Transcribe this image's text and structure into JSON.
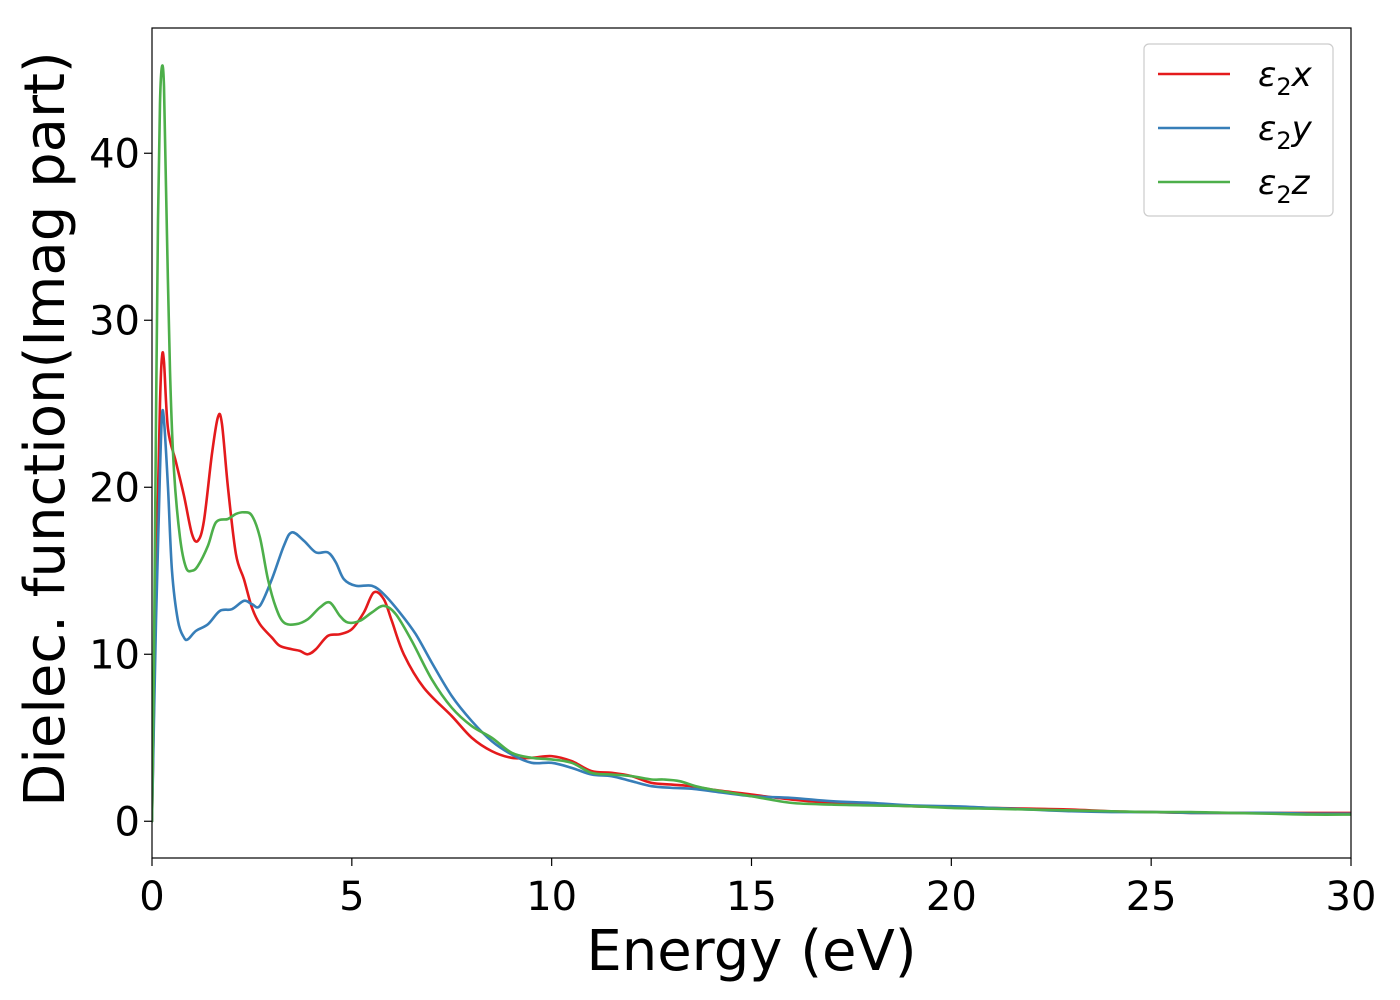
{
  "chart_data": {
    "type": "line",
    "title": "",
    "xlabel": "Energy (eV)",
    "ylabel": "Dielec. function(Imag part)",
    "xlim": [
      0,
      30
    ],
    "ylim": [
      -2.2,
      47.5
    ],
    "xticks": [
      0,
      5,
      10,
      15,
      20,
      25,
      30
    ],
    "yticks": [
      0,
      10,
      20,
      30,
      40
    ],
    "grid": false,
    "legend_position": "top-right",
    "series": [
      {
        "name": "ε2x",
        "color": "#e41a1c",
        "points": [
          [
            0,
            0
          ],
          [
            0.1,
            14
          ],
          [
            0.2,
            25
          ],
          [
            0.25,
            27.8
          ],
          [
            0.3,
            27.5
          ],
          [
            0.4,
            23.5
          ],
          [
            0.6,
            21.5
          ],
          [
            0.8,
            19.5
          ],
          [
            1.0,
            17.2
          ],
          [
            1.15,
            16.8
          ],
          [
            1.3,
            18
          ],
          [
            1.5,
            22
          ],
          [
            1.65,
            24.2
          ],
          [
            1.75,
            23.8
          ],
          [
            1.9,
            20
          ],
          [
            2.1,
            16
          ],
          [
            2.3,
            14.5
          ],
          [
            2.5,
            12.8
          ],
          [
            2.7,
            11.8
          ],
          [
            3.0,
            11
          ],
          [
            3.2,
            10.5
          ],
          [
            3.5,
            10.3
          ],
          [
            3.7,
            10.2
          ],
          [
            3.9,
            10
          ],
          [
            4.1,
            10.3
          ],
          [
            4.4,
            11.1
          ],
          [
            4.7,
            11.2
          ],
          [
            5.0,
            11.5
          ],
          [
            5.3,
            12.5
          ],
          [
            5.55,
            13.7
          ],
          [
            5.8,
            13.3
          ],
          [
            6.0,
            12
          ],
          [
            6.3,
            10
          ],
          [
            6.8,
            8
          ],
          [
            7.5,
            6.3
          ],
          [
            8.0,
            5
          ],
          [
            8.5,
            4.2
          ],
          [
            9.0,
            3.8
          ],
          [
            9.5,
            3.8
          ],
          [
            10.0,
            3.9
          ],
          [
            10.5,
            3.6
          ],
          [
            11.0,
            3.0
          ],
          [
            11.5,
            2.9
          ],
          [
            12.0,
            2.7
          ],
          [
            12.5,
            2.3
          ],
          [
            13.0,
            2.2
          ],
          [
            13.5,
            2.1
          ],
          [
            14.0,
            1.9
          ],
          [
            15.0,
            1.6
          ],
          [
            16.0,
            1.3
          ],
          [
            17.0,
            1.1
          ],
          [
            18.0,
            1.0
          ],
          [
            19.0,
            0.9
          ],
          [
            20.0,
            0.85
          ],
          [
            21.0,
            0.8
          ],
          [
            22.0,
            0.75
          ],
          [
            23.0,
            0.7
          ],
          [
            24.0,
            0.6
          ],
          [
            25.0,
            0.55
          ],
          [
            26.0,
            0.5
          ],
          [
            27.0,
            0.5
          ],
          [
            28.0,
            0.5
          ],
          [
            29.0,
            0.5
          ],
          [
            30.0,
            0.5
          ]
        ]
      },
      {
        "name": "ε2y",
        "color": "#377eb8",
        "points": [
          [
            0,
            0
          ],
          [
            0.1,
            12
          ],
          [
            0.2,
            21
          ],
          [
            0.25,
            24.3
          ],
          [
            0.3,
            24
          ],
          [
            0.4,
            20
          ],
          [
            0.5,
            15
          ],
          [
            0.65,
            12
          ],
          [
            0.8,
            11
          ],
          [
            0.9,
            10.9
          ],
          [
            1.1,
            11.4
          ],
          [
            1.4,
            11.8
          ],
          [
            1.7,
            12.6
          ],
          [
            2.0,
            12.7
          ],
          [
            2.3,
            13.2
          ],
          [
            2.5,
            13
          ],
          [
            2.7,
            12.9
          ],
          [
            3.0,
            14.5
          ],
          [
            3.3,
            16.5
          ],
          [
            3.5,
            17.3
          ],
          [
            3.8,
            16.8
          ],
          [
            4.1,
            16.1
          ],
          [
            4.4,
            16.1
          ],
          [
            4.6,
            15.5
          ],
          [
            4.8,
            14.5
          ],
          [
            5.1,
            14.1
          ],
          [
            5.5,
            14.1
          ],
          [
            5.8,
            13.6
          ],
          [
            6.2,
            12.5
          ],
          [
            6.6,
            11.2
          ],
          [
            7.0,
            9.5
          ],
          [
            7.5,
            7.5
          ],
          [
            8.0,
            6
          ],
          [
            8.5,
            4.8
          ],
          [
            9.0,
            4
          ],
          [
            9.5,
            3.5
          ],
          [
            10.0,
            3.5
          ],
          [
            10.5,
            3.2
          ],
          [
            11.0,
            2.8
          ],
          [
            11.5,
            2.7
          ],
          [
            12.0,
            2.4
          ],
          [
            12.5,
            2.1
          ],
          [
            13.0,
            2.0
          ],
          [
            13.5,
            1.95
          ],
          [
            14.0,
            1.8
          ],
          [
            15.0,
            1.5
          ],
          [
            16.0,
            1.4
          ],
          [
            17.0,
            1.2
          ],
          [
            18.0,
            1.1
          ],
          [
            19.0,
            0.95
          ],
          [
            20.0,
            0.9
          ],
          [
            21.0,
            0.8
          ],
          [
            22.0,
            0.7
          ],
          [
            23.0,
            0.6
          ],
          [
            24.0,
            0.55
          ],
          [
            25.0,
            0.55
          ],
          [
            26.0,
            0.5
          ],
          [
            27.0,
            0.5
          ],
          [
            28.0,
            0.5
          ],
          [
            29.0,
            0.45
          ],
          [
            30.0,
            0.45
          ]
        ]
      },
      {
        "name": "ε2z",
        "color": "#4daf4a",
        "points": [
          [
            0,
            0
          ],
          [
            0.05,
            10
          ],
          [
            0.1,
            24
          ],
          [
            0.15,
            36
          ],
          [
            0.2,
            43
          ],
          [
            0.25,
            45.2
          ],
          [
            0.3,
            44
          ],
          [
            0.35,
            38
          ],
          [
            0.45,
            27
          ],
          [
            0.55,
            21
          ],
          [
            0.7,
            17
          ],
          [
            0.85,
            15.2
          ],
          [
            1.0,
            15
          ],
          [
            1.15,
            15.3
          ],
          [
            1.4,
            16.5
          ],
          [
            1.6,
            17.9
          ],
          [
            1.9,
            18.1
          ],
          [
            2.1,
            18.4
          ],
          [
            2.3,
            18.5
          ],
          [
            2.5,
            18.3
          ],
          [
            2.7,
            17
          ],
          [
            2.9,
            14.5
          ],
          [
            3.1,
            12.8
          ],
          [
            3.3,
            11.9
          ],
          [
            3.6,
            11.8
          ],
          [
            3.9,
            12.1
          ],
          [
            4.2,
            12.8
          ],
          [
            4.45,
            13.1
          ],
          [
            4.7,
            12.3
          ],
          [
            4.9,
            11.9
          ],
          [
            5.2,
            12
          ],
          [
            5.5,
            12.5
          ],
          [
            5.8,
            12.9
          ],
          [
            6.1,
            12.4
          ],
          [
            6.5,
            10.8
          ],
          [
            7.0,
            8.5
          ],
          [
            7.5,
            6.8
          ],
          [
            8.0,
            5.7
          ],
          [
            8.5,
            5
          ],
          [
            9.0,
            4.1
          ],
          [
            9.5,
            3.8
          ],
          [
            10.0,
            3.7
          ],
          [
            10.5,
            3.5
          ],
          [
            11.0,
            2.9
          ],
          [
            11.5,
            2.8
          ],
          [
            12.0,
            2.7
          ],
          [
            12.5,
            2.5
          ],
          [
            12.8,
            2.5
          ],
          [
            13.2,
            2.4
          ],
          [
            13.6,
            2.1
          ],
          [
            14.0,
            1.9
          ],
          [
            15.0,
            1.5
          ],
          [
            16.0,
            1.1
          ],
          [
            17.0,
            1.0
          ],
          [
            18.0,
            0.95
          ],
          [
            19.0,
            0.9
          ],
          [
            20.0,
            0.8
          ],
          [
            21.0,
            0.75
          ],
          [
            22.0,
            0.7
          ],
          [
            23.0,
            0.65
          ],
          [
            24.0,
            0.6
          ],
          [
            25.0,
            0.55
          ],
          [
            26.0,
            0.55
          ],
          [
            27.0,
            0.5
          ],
          [
            28.0,
            0.45
          ],
          [
            29.0,
            0.4
          ],
          [
            30.0,
            0.4
          ]
        ]
      }
    ]
  }
}
